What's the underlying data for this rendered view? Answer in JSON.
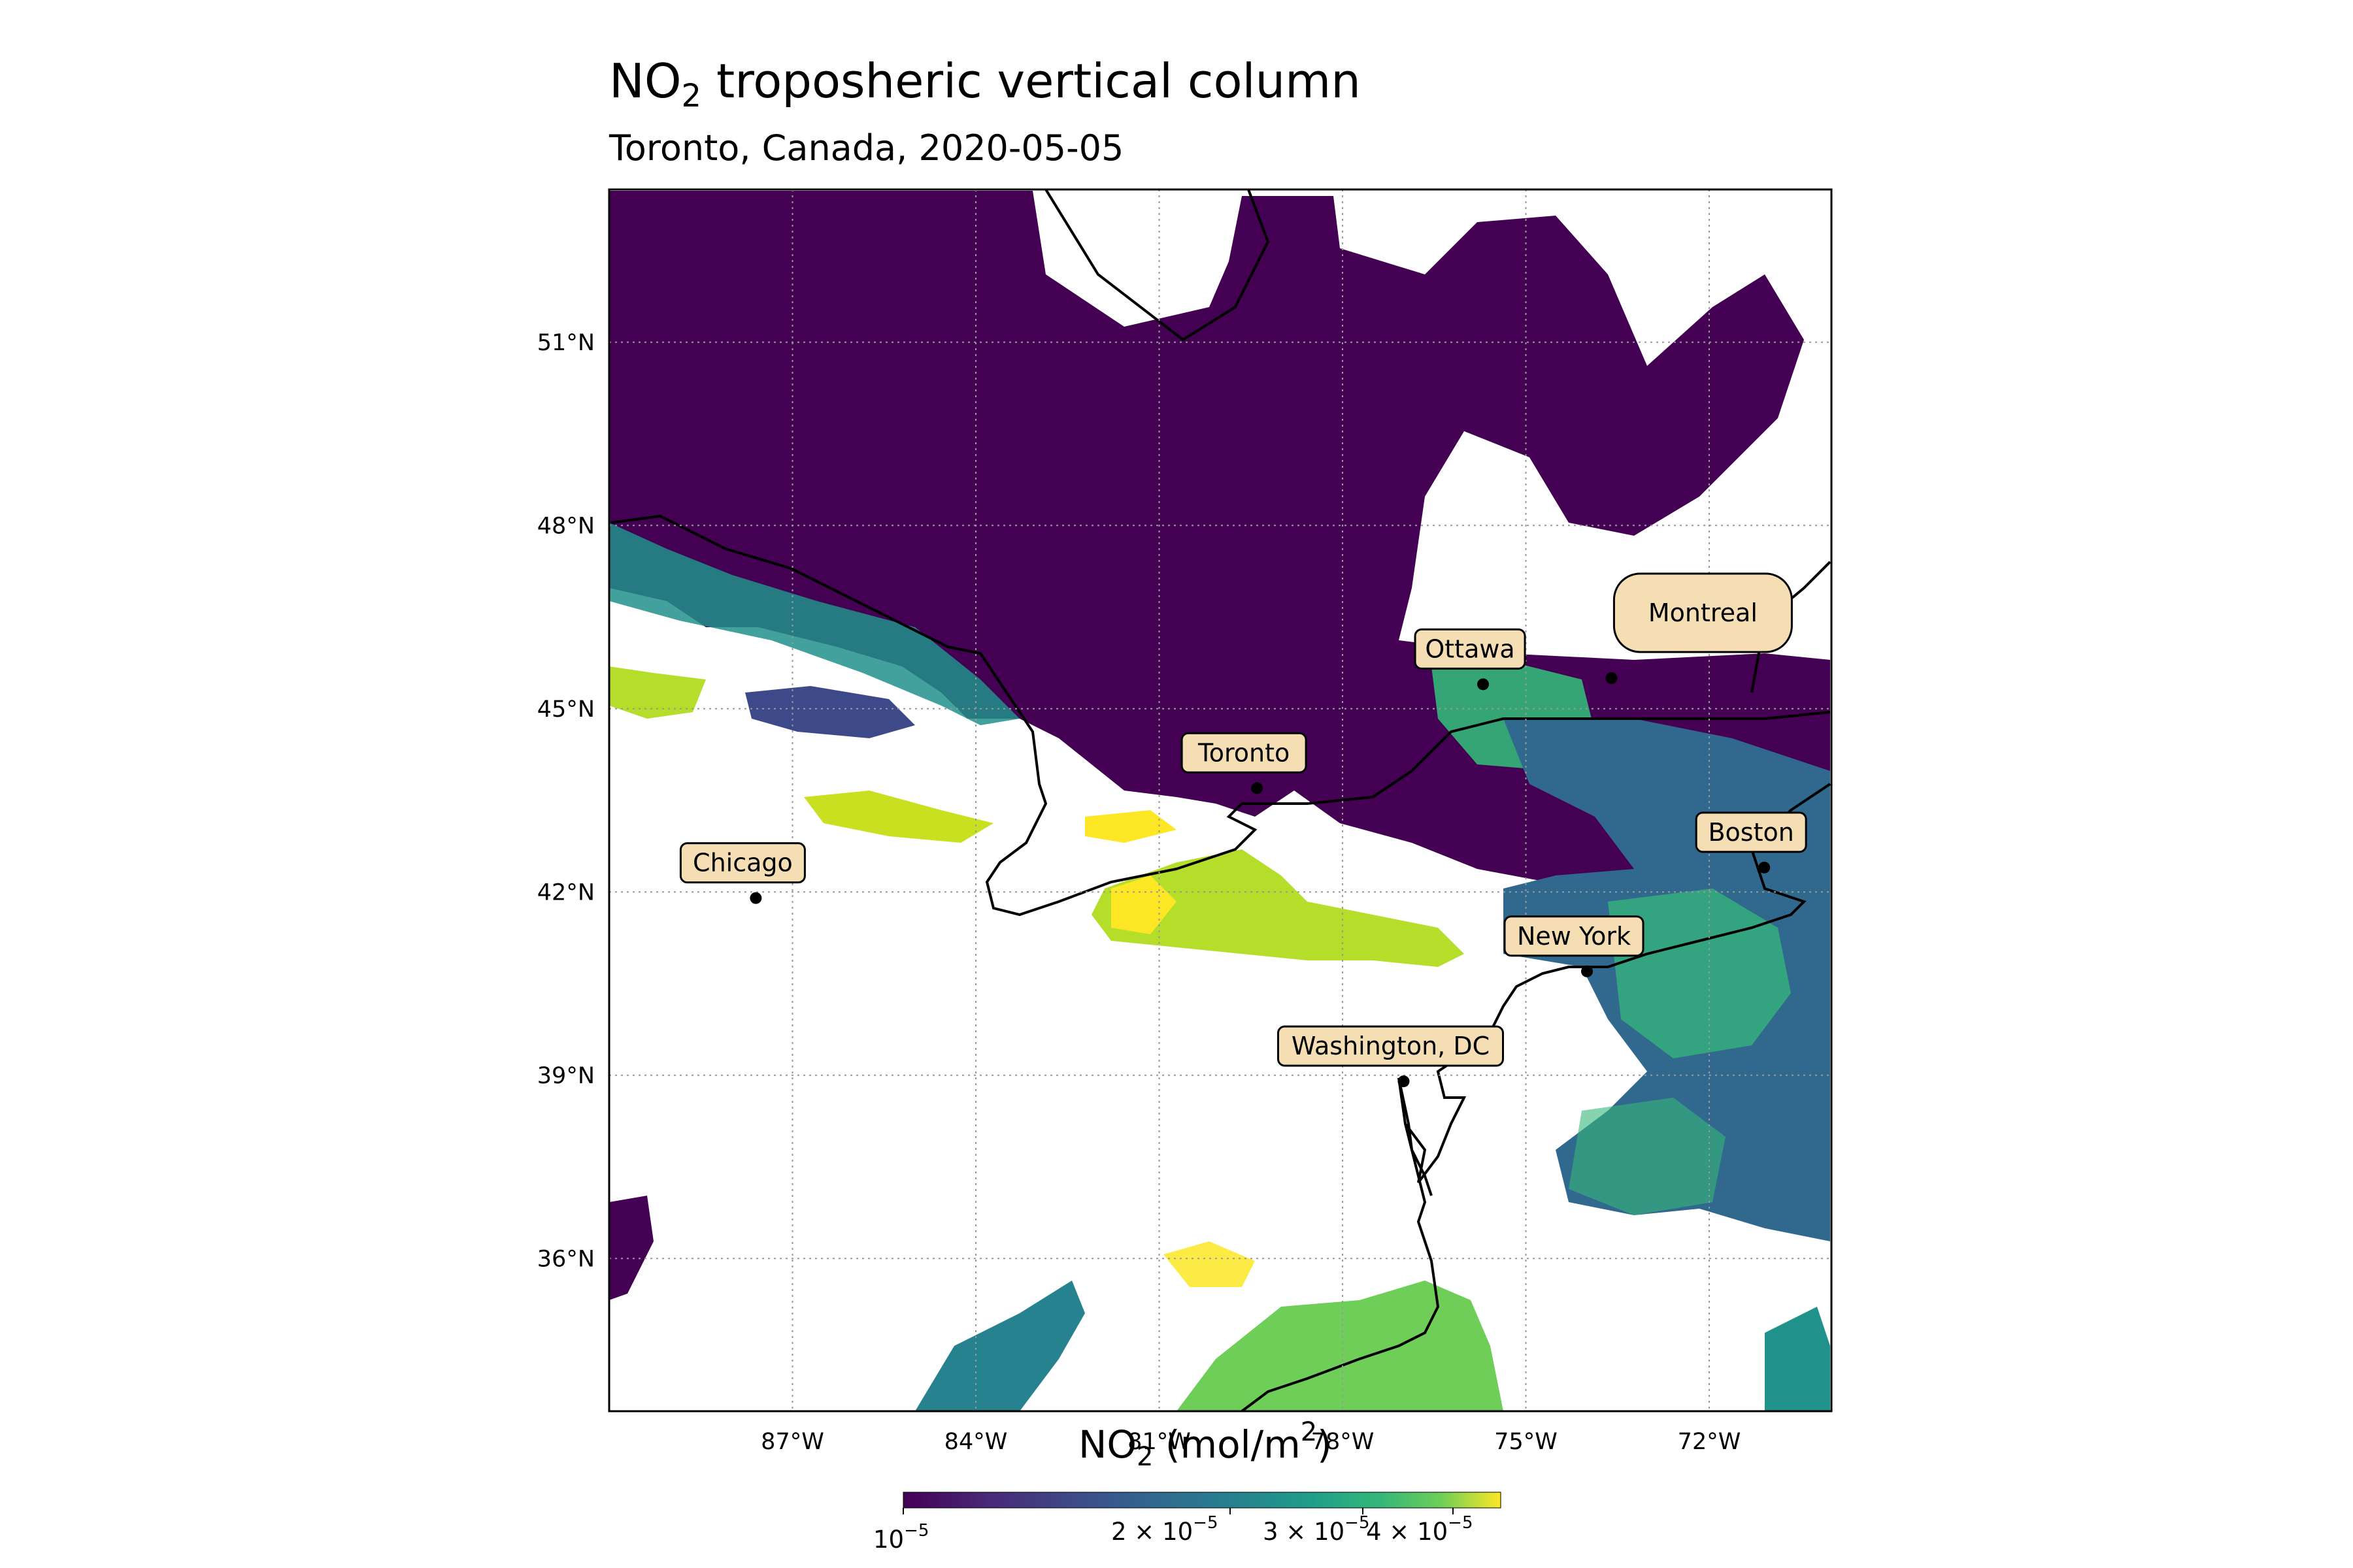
{
  "title": {
    "prefix": "NO",
    "subscript": "2",
    "rest": " troposheric vertical column"
  },
  "subtitle": "Toronto, Canada, 2020-05-05",
  "map": {
    "extent": {
      "lon": [
        -90,
        -70
      ],
      "lat": [
        33.5,
        53.5
      ]
    },
    "gridlines": "dotted",
    "lon_ticks": [
      {
        "value": -87,
        "label": "87°W"
      },
      {
        "value": -84,
        "label": "84°W"
      },
      {
        "value": -81,
        "label": "81°W"
      },
      {
        "value": -78,
        "label": "78°W"
      },
      {
        "value": -75,
        "label": "75°W"
      },
      {
        "value": -72,
        "label": "72°W"
      }
    ],
    "lat_ticks": [
      {
        "value": 51,
        "label": "51°N"
      },
      {
        "value": 48,
        "label": "48°N"
      },
      {
        "value": 45,
        "label": "45°N"
      },
      {
        "value": 42,
        "label": "42°N"
      },
      {
        "value": 39,
        "label": "39°N"
      },
      {
        "value": 36,
        "label": "36°N"
      }
    ],
    "cities": [
      {
        "name": "Ottawa",
        "lon": -75.7,
        "lat": 45.4
      },
      {
        "name": "Montreal",
        "lon": -73.6,
        "lat": 45.5
      },
      {
        "name": "Toronto",
        "lon": -79.4,
        "lat": 43.7
      },
      {
        "name": "Boston",
        "lon": -71.1,
        "lat": 42.4
      },
      {
        "name": "Chicago",
        "lon": -87.6,
        "lat": 41.9
      },
      {
        "name": "New York",
        "lon": -74.0,
        "lat": 40.7
      },
      {
        "name": "Washington, DC",
        "lon": -77.0,
        "lat": 38.9
      }
    ],
    "colors": {
      "low": "#440154",
      "mid1": "#31688e",
      "mid2": "#21918c",
      "mid3": "#35b779",
      "high": "#fde725",
      "label_box": "#f5deb3"
    }
  },
  "colorbar": {
    "label_prefix": "NO",
    "label_subscript": "2",
    "label_mid": " (mol/m",
    "label_sup": "2",
    "label_end": ")",
    "colormap": "viridis",
    "scale": "log",
    "range": [
      1e-05,
      4.5e-05
    ],
    "ticks": [
      {
        "base": "10",
        "exp": "−5"
      },
      {
        "base": "2 × 10",
        "exp": "−5"
      },
      {
        "base": "3 × 10",
        "exp": "−5"
      },
      {
        "base": "4 × 10",
        "exp": "−5"
      }
    ]
  }
}
